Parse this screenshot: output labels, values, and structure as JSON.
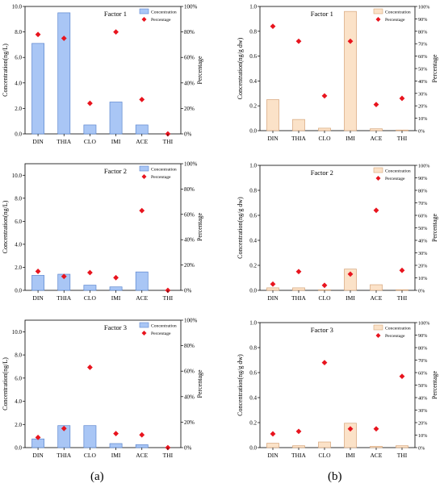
{
  "panel_labels": [
    "(a)",
    "(b)"
  ],
  "colors": {
    "a_bar_fill": "#a9c6f5",
    "a_bar_stroke": "#5b86cf",
    "b_bar_fill": "#fbe2c8",
    "b_bar_stroke": "#d6a57a",
    "marker": "#e8141e"
  },
  "chart_data": [
    {
      "type": "bar",
      "panel": "a",
      "title": "Factor 1",
      "categories": [
        "DIN",
        "THIA",
        "CLO",
        "IMI",
        "ACE",
        "THI"
      ],
      "ylabel": "Concentration(ng/L)",
      "y2label": "Percentage",
      "ylim": [
        0,
        10
      ],
      "yticks": [
        "0.0",
        "2.0",
        "4.0",
        "6.0",
        "8.0",
        "10.0"
      ],
      "y2lim": [
        0,
        100
      ],
      "y2ticks": [
        "0%",
        "20%",
        "40%",
        "60%",
        "80%",
        "100%"
      ],
      "series": [
        {
          "name": "Concentration",
          "kind": "bar",
          "values": [
            7.1,
            9.5,
            0.7,
            2.5,
            0.7,
            0.0
          ]
        },
        {
          "name": "Percentage",
          "kind": "marker",
          "axis": "right",
          "values": [
            78,
            75,
            24,
            80,
            27,
            0
          ]
        }
      ],
      "legend": "top-right"
    },
    {
      "type": "bar",
      "panel": "b",
      "title": "Factor 1",
      "categories": [
        "DIN",
        "THIA",
        "CLO",
        "IMI",
        "ACE",
        "THI"
      ],
      "ylabel": "Concentration(ng/g dw)",
      "y2label": "Percentage",
      "ylim": [
        0,
        1
      ],
      "yticks": [
        "0.0",
        "0.2",
        "0.4",
        "0.6",
        "0.8",
        "1.0"
      ],
      "y2lim": [
        0,
        100
      ],
      "y2ticks": [
        "0%",
        "10%",
        "20%",
        "30%",
        "40%",
        "50%",
        "60%",
        "70%",
        "80%",
        "90%",
        "100%"
      ],
      "series": [
        {
          "name": "Concentration",
          "kind": "bar",
          "values": [
            0.25,
            0.09,
            0.02,
            0.96,
            0.015,
            0.005
          ]
        },
        {
          "name": "Percentage",
          "kind": "marker",
          "axis": "right",
          "values": [
            84,
            72,
            28,
            72,
            21,
            26
          ]
        }
      ],
      "legend": "top-right"
    },
    {
      "type": "bar",
      "panel": "a",
      "title": "Factor 2",
      "categories": [
        "DIN",
        "THIA",
        "CLO",
        "IMI",
        "ACE",
        "THI"
      ],
      "ylabel": "Concentration(ng/L)",
      "y2label": "Percentage",
      "ylim": [
        0,
        11
      ],
      "yticks": [
        "0.0",
        "2.0",
        "4.0",
        "6.0",
        "8.0",
        "10.0"
      ],
      "y2lim": [
        0,
        100
      ],
      "y2ticks": [
        "0%",
        "20%",
        "40%",
        "60%",
        "80%",
        "100%"
      ],
      "series": [
        {
          "name": "Concentration",
          "kind": "bar",
          "values": [
            1.3,
            1.4,
            0.45,
            0.3,
            1.6,
            0.0
          ]
        },
        {
          "name": "Percentage",
          "kind": "marker",
          "axis": "right",
          "values": [
            15,
            11,
            14,
            10,
            63,
            0
          ]
        }
      ],
      "legend": "top-right"
    },
    {
      "type": "bar",
      "panel": "b",
      "title": "Factor 2",
      "categories": [
        "DIN",
        "THIA",
        "CLO",
        "IMI",
        "ACE",
        "THI"
      ],
      "ylabel": "Concentration(ng/g dw)",
      "y2label": "Percentage",
      "ylim": [
        0,
        1
      ],
      "yticks": [
        "0.0",
        "0.2",
        "0.4",
        "0.6",
        "0.8",
        "1.0"
      ],
      "y2lim": [
        0,
        100
      ],
      "y2ticks": [
        "0%",
        "10%",
        "20%",
        "30%",
        "40%",
        "50%",
        "60%",
        "70%",
        "80%",
        "90%",
        "100%"
      ],
      "series": [
        {
          "name": "Concentration",
          "kind": "bar",
          "values": [
            0.02,
            0.02,
            0.005,
            0.17,
            0.045,
            0.005
          ]
        },
        {
          "name": "Percentage",
          "kind": "marker",
          "axis": "right",
          "values": [
            5,
            15,
            4,
            13,
            64,
            16
          ]
        }
      ],
      "legend": "top-right"
    },
    {
      "type": "bar",
      "panel": "a",
      "title": "Factor 3",
      "categories": [
        "DIN",
        "THIA",
        "CLO",
        "IMI",
        "ACE",
        "THI"
      ],
      "ylabel": "Concentration(ng/L)",
      "y2label": "Percentage",
      "ylim": [
        0,
        11
      ],
      "yticks": [
        "0.0",
        "2.0",
        "4.0",
        "6.0",
        "8.0",
        "10.0"
      ],
      "y2lim": [
        0,
        100
      ],
      "y2ticks": [
        "0%",
        "20%",
        "40%",
        "60%",
        "80%",
        "100%"
      ],
      "series": [
        {
          "name": "Concentration",
          "kind": "bar",
          "values": [
            0.75,
            1.9,
            1.9,
            0.35,
            0.25,
            0.0
          ]
        },
        {
          "name": "Percentage",
          "kind": "marker",
          "axis": "right",
          "values": [
            8,
            15,
            63,
            11,
            10,
            0
          ]
        }
      ],
      "legend": "top-right"
    },
    {
      "type": "bar",
      "panel": "b",
      "title": "Factor 3",
      "categories": [
        "DIN",
        "THIA",
        "CLO",
        "IMI",
        "ACE",
        "THI"
      ],
      "ylabel": "Concentration(ng/g dw)",
      "y2label": "Percentage",
      "ylim": [
        0,
        1
      ],
      "yticks": [
        "0.0",
        "0.2",
        "0.4",
        "0.6",
        "0.8",
        "1.0"
      ],
      "y2lim": [
        0,
        100
      ],
      "y2ticks": [
        "0%",
        "10%",
        "20%",
        "30%",
        "40%",
        "50%",
        "60%",
        "70%",
        "80%",
        "90%",
        "100%"
      ],
      "series": [
        {
          "name": "Concentration",
          "kind": "bar",
          "values": [
            0.035,
            0.015,
            0.045,
            0.195,
            0.01,
            0.015
          ]
        },
        {
          "name": "Percentage",
          "kind": "marker",
          "axis": "right",
          "values": [
            11,
            13,
            68,
            15,
            15,
            57
          ]
        }
      ],
      "legend": "top-right"
    }
  ]
}
